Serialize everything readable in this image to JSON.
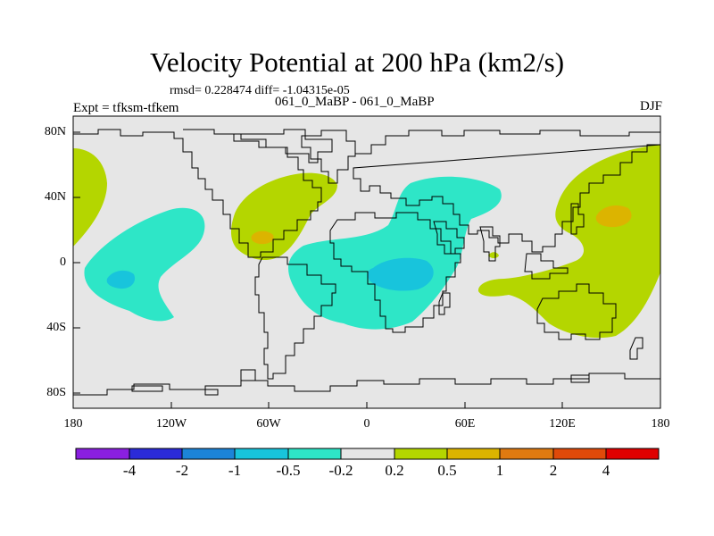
{
  "title": "Velocity Potential at 200 hPa (km2/s)",
  "stats": "rmsd= 0.228474 diff= -1.04315e-05",
  "case_pair": "061_0_MaBP - 061_0_MaBP",
  "experiment": "Expt = tfksm-tfkem",
  "season": "DJF",
  "latitude_labels": [
    "80N",
    "40N",
    "0",
    "40S",
    "80S"
  ],
  "longitude_labels": [
    "180",
    "120W",
    "60W",
    "0",
    "60E",
    "120E",
    "180"
  ],
  "colorbar": {
    "colors": [
      "#8a1fe0",
      "#2b2bd9",
      "#1c84d8",
      "#18c4dc",
      "#2ee6c7",
      "#e6e6e6",
      "#b4d600",
      "#dcb400",
      "#e07a10",
      "#e04a0a",
      "#e00000"
    ],
    "tick_labels": [
      "-4",
      "-2",
      "-1",
      "-0.5",
      "-0.2",
      "0.2",
      "0.5",
      "1",
      "2",
      "4"
    ]
  },
  "colors": {
    "background_field": "#e6e6e6",
    "negative_contour": "#2ee6c7",
    "negative_core": "#18c4dc",
    "positive_contour": "#b4d600",
    "positive_core": "#dcb400"
  }
}
